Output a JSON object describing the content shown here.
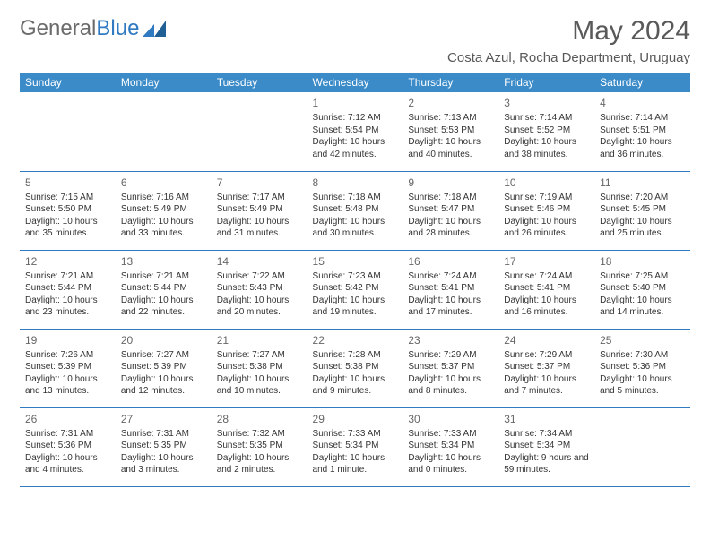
{
  "logo": {
    "text1": "General",
    "text2": "Blue"
  },
  "title": "May 2024",
  "location": "Costa Azul, Rocha Department, Uruguay",
  "colors": {
    "header_bg": "#3b8bc8",
    "header_text": "#ffffff",
    "border": "#2f7ac0",
    "title_text": "#595959",
    "body_text": "#333333",
    "daynum_text": "#666666",
    "logo_gray": "#6b6b6b",
    "logo_blue": "#2f7ac0"
  },
  "weekdays": [
    "Sunday",
    "Monday",
    "Tuesday",
    "Wednesday",
    "Thursday",
    "Friday",
    "Saturday"
  ],
  "weeks": [
    [
      null,
      null,
      null,
      {
        "n": "1",
        "sr": "7:12 AM",
        "ss": "5:54 PM",
        "dl": "10 hours and 42 minutes."
      },
      {
        "n": "2",
        "sr": "7:13 AM",
        "ss": "5:53 PM",
        "dl": "10 hours and 40 minutes."
      },
      {
        "n": "3",
        "sr": "7:14 AM",
        "ss": "5:52 PM",
        "dl": "10 hours and 38 minutes."
      },
      {
        "n": "4",
        "sr": "7:14 AM",
        "ss": "5:51 PM",
        "dl": "10 hours and 36 minutes."
      }
    ],
    [
      {
        "n": "5",
        "sr": "7:15 AM",
        "ss": "5:50 PM",
        "dl": "10 hours and 35 minutes."
      },
      {
        "n": "6",
        "sr": "7:16 AM",
        "ss": "5:49 PM",
        "dl": "10 hours and 33 minutes."
      },
      {
        "n": "7",
        "sr": "7:17 AM",
        "ss": "5:49 PM",
        "dl": "10 hours and 31 minutes."
      },
      {
        "n": "8",
        "sr": "7:18 AM",
        "ss": "5:48 PM",
        "dl": "10 hours and 30 minutes."
      },
      {
        "n": "9",
        "sr": "7:18 AM",
        "ss": "5:47 PM",
        "dl": "10 hours and 28 minutes."
      },
      {
        "n": "10",
        "sr": "7:19 AM",
        "ss": "5:46 PM",
        "dl": "10 hours and 26 minutes."
      },
      {
        "n": "11",
        "sr": "7:20 AM",
        "ss": "5:45 PM",
        "dl": "10 hours and 25 minutes."
      }
    ],
    [
      {
        "n": "12",
        "sr": "7:21 AM",
        "ss": "5:44 PM",
        "dl": "10 hours and 23 minutes."
      },
      {
        "n": "13",
        "sr": "7:21 AM",
        "ss": "5:44 PM",
        "dl": "10 hours and 22 minutes."
      },
      {
        "n": "14",
        "sr": "7:22 AM",
        "ss": "5:43 PM",
        "dl": "10 hours and 20 minutes."
      },
      {
        "n": "15",
        "sr": "7:23 AM",
        "ss": "5:42 PM",
        "dl": "10 hours and 19 minutes."
      },
      {
        "n": "16",
        "sr": "7:24 AM",
        "ss": "5:41 PM",
        "dl": "10 hours and 17 minutes."
      },
      {
        "n": "17",
        "sr": "7:24 AM",
        "ss": "5:41 PM",
        "dl": "10 hours and 16 minutes."
      },
      {
        "n": "18",
        "sr": "7:25 AM",
        "ss": "5:40 PM",
        "dl": "10 hours and 14 minutes."
      }
    ],
    [
      {
        "n": "19",
        "sr": "7:26 AM",
        "ss": "5:39 PM",
        "dl": "10 hours and 13 minutes."
      },
      {
        "n": "20",
        "sr": "7:27 AM",
        "ss": "5:39 PM",
        "dl": "10 hours and 12 minutes."
      },
      {
        "n": "21",
        "sr": "7:27 AM",
        "ss": "5:38 PM",
        "dl": "10 hours and 10 minutes."
      },
      {
        "n": "22",
        "sr": "7:28 AM",
        "ss": "5:38 PM",
        "dl": "10 hours and 9 minutes."
      },
      {
        "n": "23",
        "sr": "7:29 AM",
        "ss": "5:37 PM",
        "dl": "10 hours and 8 minutes."
      },
      {
        "n": "24",
        "sr": "7:29 AM",
        "ss": "5:37 PM",
        "dl": "10 hours and 7 minutes."
      },
      {
        "n": "25",
        "sr": "7:30 AM",
        "ss": "5:36 PM",
        "dl": "10 hours and 5 minutes."
      }
    ],
    [
      {
        "n": "26",
        "sr": "7:31 AM",
        "ss": "5:36 PM",
        "dl": "10 hours and 4 minutes."
      },
      {
        "n": "27",
        "sr": "7:31 AM",
        "ss": "5:35 PM",
        "dl": "10 hours and 3 minutes."
      },
      {
        "n": "28",
        "sr": "7:32 AM",
        "ss": "5:35 PM",
        "dl": "10 hours and 2 minutes."
      },
      {
        "n": "29",
        "sr": "7:33 AM",
        "ss": "5:34 PM",
        "dl": "10 hours and 1 minute."
      },
      {
        "n": "30",
        "sr": "7:33 AM",
        "ss": "5:34 PM",
        "dl": "10 hours and 0 minutes."
      },
      {
        "n": "31",
        "sr": "7:34 AM",
        "ss": "5:34 PM",
        "dl": "9 hours and 59 minutes."
      },
      null
    ]
  ],
  "labels": {
    "sunrise": "Sunrise:",
    "sunset": "Sunset:",
    "daylight": "Daylight:"
  }
}
